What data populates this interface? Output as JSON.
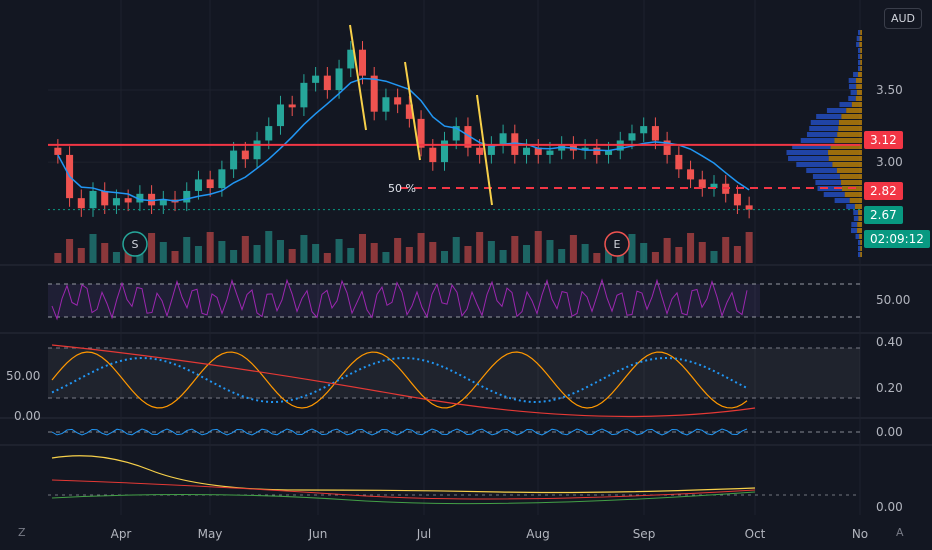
{
  "chart_data": {
    "type": "candlestick",
    "currency": "AUD",
    "x_ticks": [
      "Apr",
      "May",
      "Jun",
      "Jul",
      "Aug",
      "Sep",
      "Oct",
      "No"
    ],
    "price_axis_ticks": [
      "3.50",
      "3.00"
    ],
    "price_ylim": [
      2.3,
      4.0
    ],
    "markers": [
      {
        "label": "3.12",
        "color": "#f23645"
      },
      {
        "label": "2.82",
        "color": "#f23645"
      },
      {
        "label": "2.67",
        "color": "#089981"
      },
      {
        "label": "02:09:12",
        "color": "#089981"
      }
    ],
    "annotations": {
      "fib_label": "50 %",
      "events": [
        "S",
        "E"
      ]
    },
    "indicators": {
      "rsi_axis": [
        "50.00"
      ],
      "stoch_left_axis": [
        "50.00",
        "0.00"
      ],
      "stoch_right_axis": [
        "0.40",
        "0.20"
      ],
      "macd_axis": [
        "0.00"
      ],
      "dmi_axis": [
        "0.00"
      ]
    },
    "candles_ohlc_approx": [
      [
        3.1,
        3.05
      ],
      [
        3.05,
        2.75
      ],
      [
        2.75,
        2.68
      ],
      [
        2.68,
        2.8
      ],
      [
        2.8,
        2.7
      ],
      [
        2.7,
        2.75
      ],
      [
        2.75,
        2.72
      ],
      [
        2.72,
        2.78
      ],
      [
        2.78,
        2.7
      ],
      [
        2.7,
        2.74
      ],
      [
        2.74,
        2.72
      ],
      [
        2.72,
        2.8
      ],
      [
        2.8,
        2.88
      ],
      [
        2.88,
        2.82
      ],
      [
        2.82,
        2.95
      ],
      [
        2.95,
        3.08
      ],
      [
        3.08,
        3.02
      ],
      [
        3.02,
        3.15
      ],
      [
        3.15,
        3.25
      ],
      [
        3.25,
        3.4
      ],
      [
        3.4,
        3.38
      ],
      [
        3.38,
        3.55
      ],
      [
        3.55,
        3.6
      ],
      [
        3.6,
        3.5
      ],
      [
        3.5,
        3.65
      ],
      [
        3.65,
        3.78
      ],
      [
        3.78,
        3.6
      ],
      [
        3.6,
        3.35
      ],
      [
        3.35,
        3.45
      ],
      [
        3.45,
        3.4
      ],
      [
        3.4,
        3.3
      ],
      [
        3.3,
        3.1
      ],
      [
        3.1,
        3.0
      ],
      [
        3.0,
        3.15
      ],
      [
        3.15,
        3.25
      ],
      [
        3.25,
        3.1
      ],
      [
        3.1,
        3.05
      ],
      [
        3.05,
        3.12
      ],
      [
        3.12,
        3.2
      ],
      [
        3.2,
        3.05
      ],
      [
        3.05,
        3.1
      ],
      [
        3.1,
        3.05
      ],
      [
        3.05,
        3.08
      ],
      [
        3.08,
        3.12
      ],
      [
        3.12,
        3.08
      ],
      [
        3.08,
        3.1
      ],
      [
        3.1,
        3.05
      ],
      [
        3.05,
        3.08
      ],
      [
        3.08,
        3.15
      ],
      [
        3.15,
        3.2
      ],
      [
        3.2,
        3.25
      ],
      [
        3.25,
        3.15
      ],
      [
        3.15,
        3.05
      ],
      [
        3.05,
        2.95
      ],
      [
        2.95,
        2.88
      ],
      [
        2.88,
        2.82
      ],
      [
        2.82,
        2.85
      ],
      [
        2.85,
        2.78
      ],
      [
        2.78,
        2.7
      ],
      [
        2.7,
        2.67
      ]
    ]
  }
}
